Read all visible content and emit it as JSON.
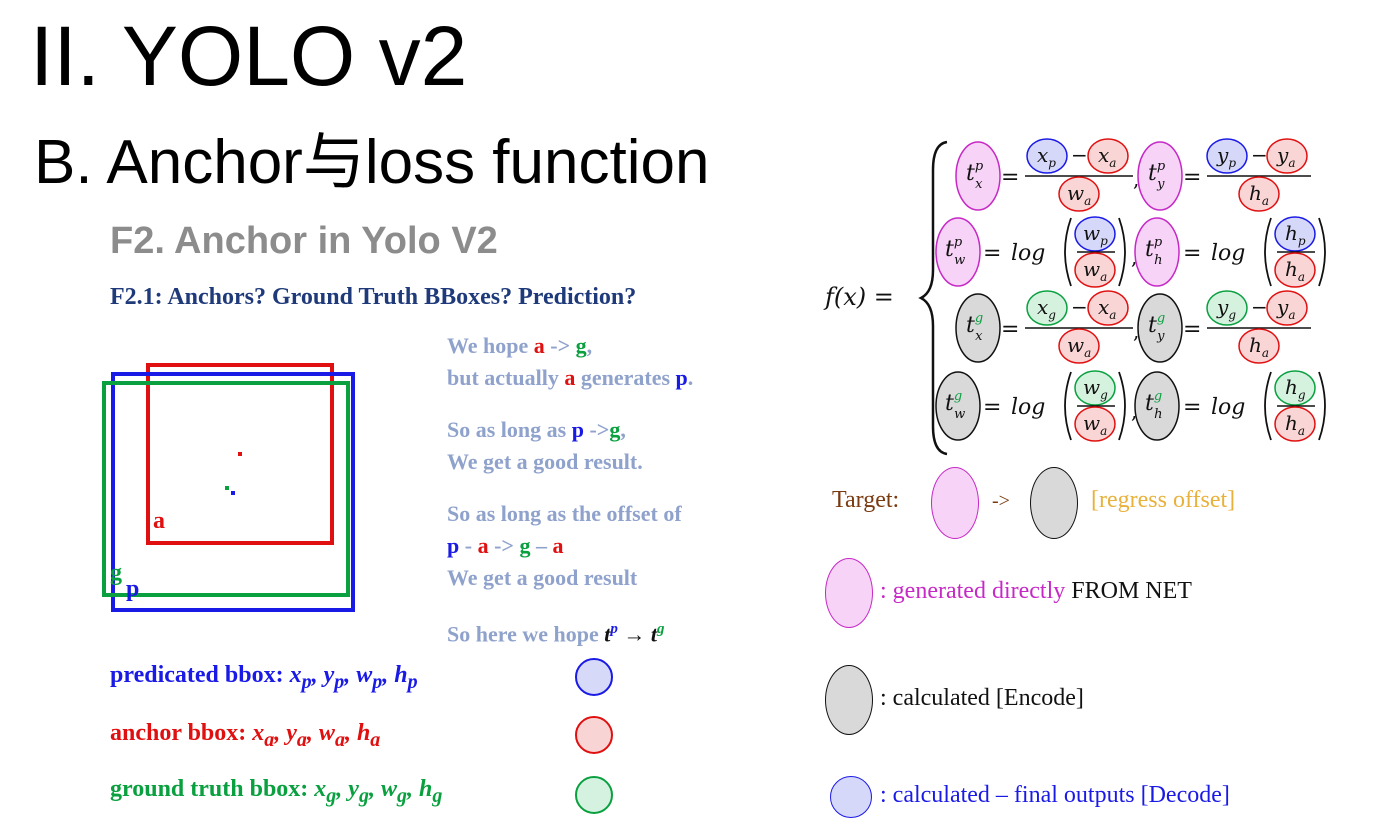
{
  "slide": {
    "title": "II. YOLO v2",
    "subtitle": "B. Anchor与loss function"
  },
  "figure": {
    "heading": "F2. Anchor in Yolo V2",
    "subheading": "F2.1: Anchors? Ground Truth BBoxes? Prediction?",
    "box_labels": {
      "anchor": "a",
      "ground_truth": "g",
      "prediction": "p"
    },
    "notes": {
      "n1_prefix": "We hope ",
      "n1_a": "a",
      "n1_arrow": " -> ",
      "n1_g": "g",
      "n1_comma": ",",
      "n2_prefix": "but actually ",
      "n2_a": "a",
      "n2_mid": " generates ",
      "n2_p": "p",
      "n2_end": ".",
      "n3_prefix": "So as long as ",
      "n3_p": "p",
      "n3_arrow": " ->",
      "n3_g": "g",
      "n3_comma": ",",
      "n4": "We get a good result.",
      "n5": "So as long as the offset of",
      "n6_p": "p",
      "n6_minus1": " - ",
      "n6_a1": "a",
      "n6_arrow": " -> ",
      "n6_g": "g",
      "n6_minus2": " – ",
      "n6_a2": "a",
      "n7": "We get a good result",
      "n8_prefix": "So here we hope ",
      "n8_tp": "t",
      "n8_tp_sup": "p",
      "n8_arrow": " → ",
      "n8_tg": "t",
      "n8_tg_sup": "g"
    },
    "legend": [
      {
        "label": "predicated bbox: ",
        "vars": "x",
        "sub": "p",
        "color": "#1a1ae6",
        "fill": "#d7d9f9"
      },
      {
        "label": "anchor bbox: ",
        "vars": "x",
        "sub": "a",
        "color": "#e01010",
        "fill": "#f9d4d4"
      },
      {
        "label": "ground truth bbox: ",
        "vars": "x",
        "sub": "g",
        "color": "#0aa040",
        "fill": "#d4f2df"
      }
    ]
  },
  "formula": {
    "lhs": "f(x) = ",
    "log": "log",
    "eq": "=",
    "minus": "−"
  },
  "key": {
    "target_label": "Target:",
    "target_arrow": "->",
    "target_note": "[regress offset]",
    "generated_prefix": ": generated directly ",
    "generated_suffix": "FROM NET",
    "encode": ": calculated [Encode]",
    "decode": ": calculated – final outputs [Decode]"
  },
  "colors": {
    "pink_fill": "#f7d3f7",
    "pink_stroke": "#c629c6",
    "gray_fill": "#d9d9d9",
    "gray_stroke": "#111111",
    "blue_fill": "#d6d8fa",
    "blue_stroke": "#1a1ae6",
    "red_fill": "#fad5d5",
    "red_stroke": "#e01010",
    "green_fill": "#d5f2df",
    "green_stroke": "#0aa040",
    "target_label": "#7a3a10",
    "target_note": "#e8b13a"
  }
}
